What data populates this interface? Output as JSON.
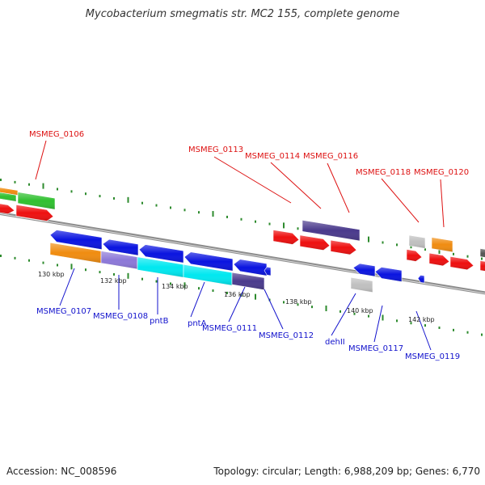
{
  "title": "Mycobacterium smegmatis str. MC2 155, complete genome",
  "footer": {
    "accession": "Accession: NC_008596",
    "summary": "Topology: circular; Length: 6,988,209 bp; Genes: 6,770"
  },
  "colors": {
    "backbone": "#8c8c8c",
    "ticks": "#2e8b2e",
    "forward_label": "#dd1111",
    "reverse_label": "#1111cc",
    "blue": "#0a14e0",
    "orange": "#f08c10",
    "violet": "#8c78d8",
    "cyan": "#00e8f0",
    "navy": "#4a3a8c",
    "red": "#ee1010",
    "green": "#30c030",
    "grey": "#c0c0c0"
  },
  "scale_labels": [
    "130 kbp",
    "132 kbp",
    "134 kbp",
    "136 kbp",
    "138 kbp",
    "140 kbp",
    "142 kbp"
  ],
  "forward_gene_labels": [
    "MSMEG_0106",
    "MSMEG_0113",
    "MSMEG_0114",
    "MSMEG_0116",
    "MSMEG_0118",
    "MSMEG_0120"
  ],
  "reverse_gene_labels": [
    "MSMEG_0107",
    "MSMEG_0108",
    "pntB",
    "pntA",
    "MSMEG_0111",
    "MSMEG_0112",
    "dehII",
    "MSMEG_0117",
    "MSMEG_0119"
  ]
}
